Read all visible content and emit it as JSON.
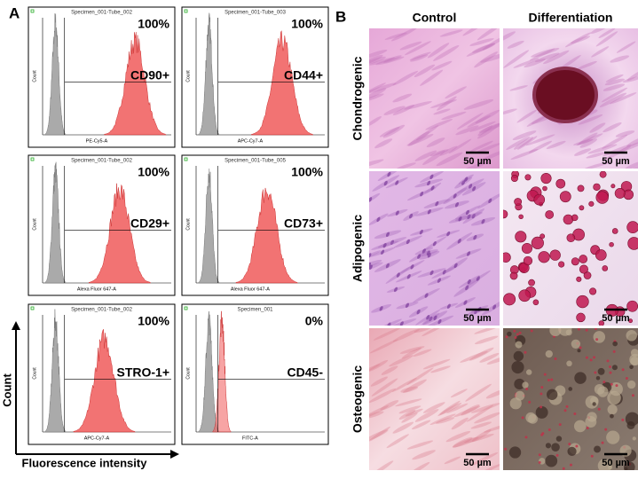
{
  "panel_a": {
    "label": "A",
    "axis_y": "Count",
    "axis_x": "Fluorescence intensity",
    "plots": [
      {
        "specimen": "Specimen_001-Tube_002",
        "percent": "100%",
        "marker": "CD90+",
        "x_label": "PE-Cy5-A",
        "y_label": "Count"
      },
      {
        "specimen": "Specimen_001-Tube_003",
        "percent": "100%",
        "marker": "CD44+",
        "x_label": "APC-Cy7-A",
        "y_label": "Count"
      },
      {
        "specimen": "Specimen_001-Tube_002",
        "percent": "100%",
        "marker": "CD29+",
        "x_label": "Alexa Fluor 647-A",
        "y_label": "Count"
      },
      {
        "specimen": "Specimen_001-Tube_005",
        "percent": "100%",
        "marker": "CD73+",
        "x_label": "Alexa Fluor 647-A",
        "y_label": "Count"
      },
      {
        "specimen": "Specimen_001-Tube_002",
        "percent": "100%",
        "marker": "STRO-1+",
        "x_label": "APC-Cy7-A",
        "y_label": "Count"
      },
      {
        "specimen": "Specimen_001",
        "percent": "0%",
        "marker": "CD45-",
        "x_label": "FITC-A",
        "y_label": "Count"
      }
    ]
  },
  "panel_b": {
    "label": "B",
    "columns": [
      "Control",
      "Differentiation"
    ],
    "rows": [
      "Chondrogenic",
      "Adipogenic",
      "Osteogenic"
    ],
    "scale_bars": [
      [
        "50 µm",
        "50 µm"
      ],
      [
        "50 µm",
        "50 µm"
      ],
      [
        "50 µm",
        "50 µm"
      ]
    ]
  }
}
